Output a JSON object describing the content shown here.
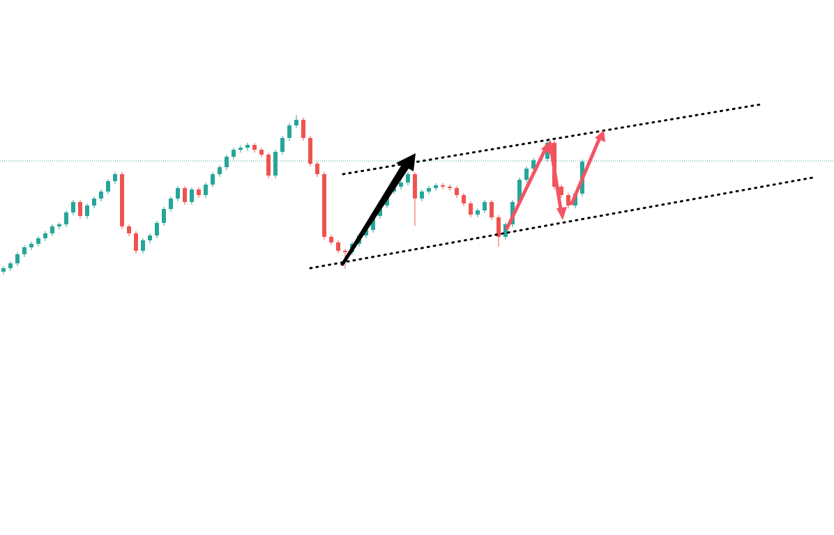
{
  "chart_data": {
    "type": "candlestick",
    "ylim": [
      0,
      768
    ],
    "up_color": "#26a69a",
    "down_color": "#ef5350",
    "open": [
      378,
      383,
      390,
      403,
      413,
      418,
      426,
      433,
      443,
      446,
      463,
      478,
      458,
      473,
      483,
      493,
      508,
      518,
      443,
      433,
      408,
      423,
      430,
      448,
      468,
      483,
      498,
      478,
      496,
      488,
      503,
      518,
      528,
      543,
      553,
      556,
      560,
      553,
      546,
      516,
      550,
      570,
      588,
      596,
      570,
      533,
      518,
      428,
      420,
      408,
      406,
      418,
      430,
      438,
      458,
      473,
      493,
      500,
      506,
      518,
      483,
      493,
      498,
      502,
      500,
      498,
      488,
      476,
      460,
      466,
      478,
      456,
      428,
      446,
      478,
      510,
      526,
      538,
      540,
      563,
      500,
      488,
      473,
      490
    ],
    "high": [
      386,
      393,
      406,
      416,
      421,
      429,
      436,
      446,
      449,
      466,
      481,
      481,
      476,
      486,
      496,
      511,
      521,
      521,
      446,
      436,
      426,
      433,
      451,
      471,
      486,
      501,
      501,
      499,
      499,
      506,
      521,
      531,
      546,
      556,
      559,
      563,
      563,
      556,
      549,
      553,
      573,
      591,
      603,
      599,
      573,
      536,
      521,
      431,
      423,
      411,
      421,
      433,
      441,
      461,
      476,
      496,
      503,
      509,
      521,
      521,
      496,
      501,
      505,
      505,
      503,
      501,
      491,
      479,
      469,
      481,
      481,
      459,
      449,
      481,
      513,
      529,
      541,
      543,
      566,
      566,
      503,
      491,
      493,
      539
    ],
    "low": [
      374,
      379,
      386,
      399,
      409,
      414,
      422,
      429,
      439,
      442,
      459,
      454,
      454,
      469,
      479,
      489,
      504,
      439,
      429,
      404,
      404,
      419,
      426,
      444,
      464,
      479,
      474,
      474,
      484,
      484,
      499,
      514,
      524,
      539,
      549,
      552,
      549,
      542,
      512,
      512,
      546,
      566,
      584,
      566,
      529,
      514,
      424,
      416,
      404,
      382,
      402,
      414,
      426,
      434,
      454,
      469,
      489,
      496,
      502,
      444,
      479,
      489,
      494,
      496,
      494,
      484,
      472,
      456,
      456,
      462,
      452,
      414,
      424,
      442,
      474,
      506,
      522,
      534,
      536,
      496,
      484,
      469,
      469,
      486
    ],
    "close": [
      383,
      390,
      403,
      413,
      418,
      426,
      433,
      443,
      446,
      463,
      478,
      458,
      473,
      483,
      493,
      508,
      518,
      443,
      433,
      408,
      423,
      430,
      448,
      468,
      483,
      498,
      478,
      496,
      488,
      503,
      518,
      528,
      543,
      553,
      556,
      560,
      553,
      546,
      516,
      550,
      570,
      588,
      596,
      570,
      533,
      518,
      428,
      420,
      408,
      406,
      418,
      430,
      438,
      458,
      473,
      493,
      500,
      506,
      518,
      483,
      493,
      498,
      502,
      500,
      498,
      488,
      476,
      460,
      466,
      478,
      456,
      428,
      446,
      478,
      510,
      526,
      538,
      540,
      563,
      500,
      488,
      473,
      490,
      536
    ]
  }
}
